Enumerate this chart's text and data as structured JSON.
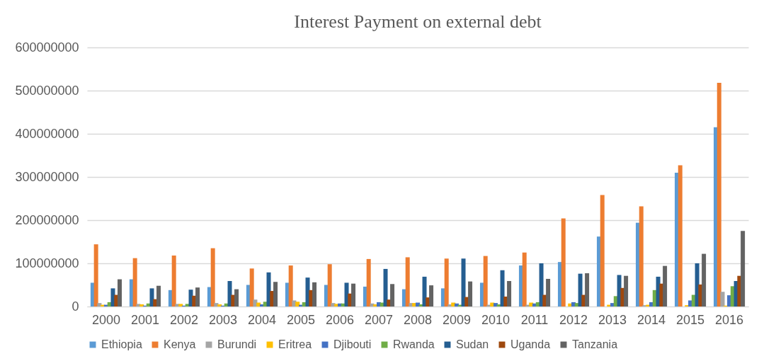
{
  "chart_data": {
    "type": "bar",
    "title": "Interest Payment on external debt",
    "categories": [
      "2000",
      "2001",
      "2002",
      "2003",
      "2004",
      "2005",
      "2006",
      "2007",
      "2008",
      "2009",
      "2010",
      "2011",
      "2012",
      "2013",
      "2014",
      "2015",
      "2016"
    ],
    "series": [
      {
        "name": "Ethiopia",
        "color": "#5b9bd5",
        "values": [
          55000000,
          63000000,
          38000000,
          45000000,
          50000000,
          55000000,
          50000000,
          46000000,
          40000000,
          42000000,
          55000000,
          95000000,
          103000000,
          162000000,
          194000000,
          310000000,
          415000000
        ]
      },
      {
        "name": "Kenya",
        "color": "#ed7d31",
        "values": [
          144000000,
          112000000,
          118000000,
          135000000,
          88000000,
          95000000,
          98000000,
          110000000,
          114000000,
          111000000,
          117000000,
          125000000,
          204000000,
          258000000,
          232000000,
          327000000,
          518000000
        ]
      },
      {
        "name": "Burundi",
        "color": "#a5a5a5",
        "values": [
          8000000,
          6000000,
          6000000,
          8000000,
          16000000,
          14000000,
          8000000,
          7000000,
          8000000,
          5000000,
          4000000,
          4000000,
          null,
          null,
          3000000,
          null,
          34000000
        ]
      },
      {
        "name": "Eritrea",
        "color": "#ffc000",
        "values": [
          4000000,
          5000000,
          6000000,
          5000000,
          9000000,
          11000000,
          6000000,
          5000000,
          8000000,
          9000000,
          9000000,
          9000000,
          7000000,
          4000000,
          4000000,
          3000000,
          2000000
        ]
      },
      {
        "name": "Djibouti",
        "color": "#4472c4",
        "values": [
          4000000,
          2000000,
          2000000,
          2000000,
          5000000,
          4000000,
          7000000,
          10000000,
          9000000,
          7000000,
          8000000,
          7000000,
          10000000,
          8000000,
          10000000,
          14000000,
          26000000
        ]
      },
      {
        "name": "Rwanda",
        "color": "#70ad47",
        "values": [
          10000000,
          7000000,
          6000000,
          7000000,
          11000000,
          10000000,
          7000000,
          9000000,
          5000000,
          4000000,
          5000000,
          10000000,
          8000000,
          24000000,
          38000000,
          27000000,
          47000000
        ]
      },
      {
        "name": "Sudan",
        "color": "#255e91",
        "values": [
          42000000,
          42000000,
          39000000,
          59000000,
          79000000,
          67000000,
          55000000,
          87000000,
          69000000,
          111000000,
          84000000,
          100000000,
          76000000,
          73000000,
          69000000,
          100000000,
          59000000
        ]
      },
      {
        "name": "Uganda",
        "color": "#9e480e",
        "values": [
          27000000,
          17000000,
          25000000,
          27000000,
          36000000,
          38000000,
          30000000,
          16000000,
          21000000,
          22000000,
          23000000,
          27000000,
          27000000,
          43000000,
          53000000,
          51000000,
          71000000
        ]
      },
      {
        "name": "Tanzania",
        "color": "#636363",
        "values": [
          63000000,
          48000000,
          44000000,
          40000000,
          57000000,
          56000000,
          53000000,
          52000000,
          49000000,
          58000000,
          59000000,
          64000000,
          77000000,
          71000000,
          94000000,
          122000000,
          175000000
        ]
      }
    ],
    "ylim": [
      0,
      600000000
    ],
    "yticks": [
      0,
      100000000,
      200000000,
      300000000,
      400000000,
      500000000,
      600000000
    ],
    "grid": "y",
    "legend": "bottom"
  }
}
